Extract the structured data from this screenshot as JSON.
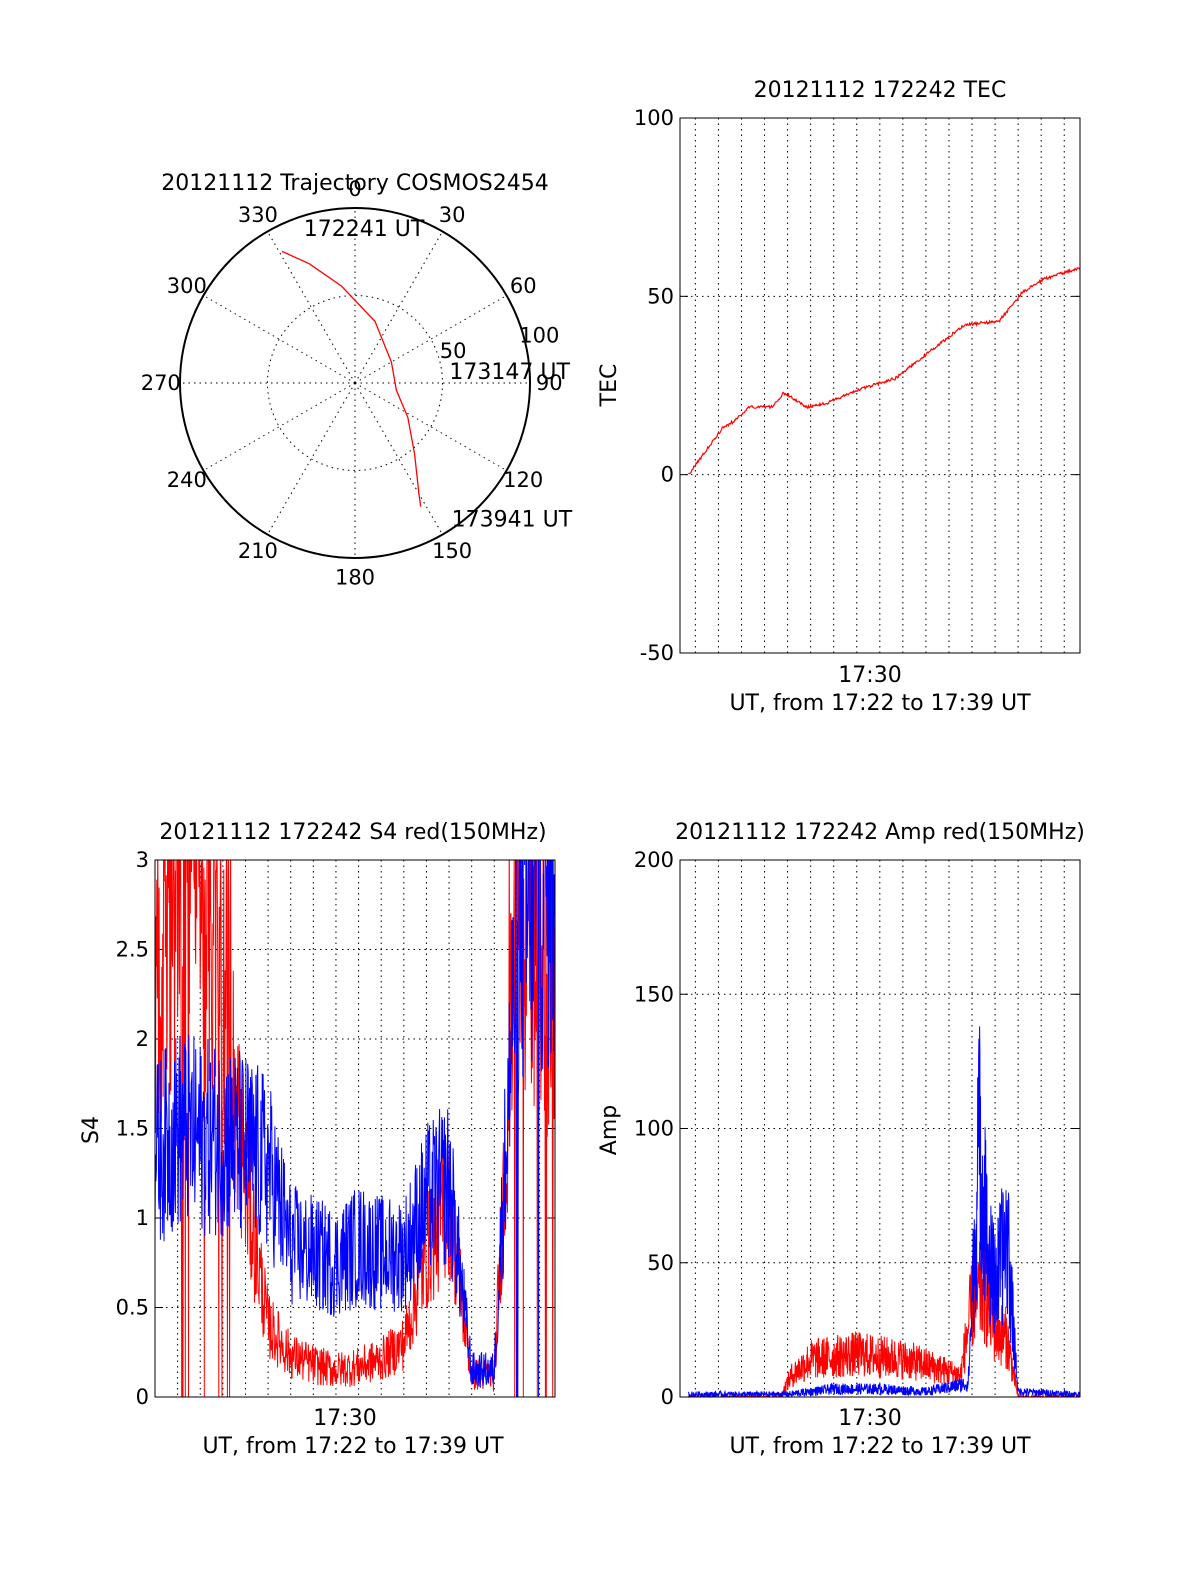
{
  "colors": {
    "red": "#ff0000",
    "blue": "#0000ff",
    "axis": "#000000"
  },
  "chart_data": [
    {
      "type": "polar",
      "title": "20121112 Trajectory COSMOS2454",
      "azimuth_labels": [
        "0",
        "30",
        "60",
        "90",
        "120",
        "150",
        "180",
        "210",
        "240",
        "270",
        "300",
        "330"
      ],
      "radial_ticks": [
        50,
        100
      ],
      "rmax": 100,
      "series": [
        {
          "color": "red",
          "points": [
            [
              331,
              86
            ],
            [
              339,
              73
            ],
            [
              352,
              56
            ],
            [
              18,
              37
            ],
            [
              60,
              24
            ],
            [
              100,
              24
            ],
            [
              123,
              36
            ],
            [
              140,
              53
            ],
            [
              150,
              73
            ],
            [
              152,
              80
            ]
          ]
        }
      ],
      "annotations": [
        {
          "text": "172241 UT",
          "az": 345,
          "r": 91
        },
        {
          "text": "173147 UT",
          "az": 84,
          "r": 60
        },
        {
          "text": "173941 UT",
          "az": 142,
          "r": 99
        }
      ]
    },
    {
      "type": "line",
      "title": "20121112 172242 TEC",
      "ylabel": "TEC",
      "xlabel": "UT, from 17:22 to 17:39 UT",
      "x_tick_labels": [
        "17:30"
      ],
      "y_ticks": [
        100,
        50,
        0,
        -50
      ],
      "ylim": [
        -50,
        100
      ],
      "series": [
        {
          "color": "red",
          "x": [
            "17:22:42",
            "17:24:10",
            "17:24:40",
            "17:25:20",
            "17:26:20",
            "17:26:50",
            "17:27:50",
            "17:28:40",
            "17:30:10",
            "17:31:40",
            "17:32:40",
            "17:33:40",
            "17:34:40",
            "17:36:10",
            "17:36:40",
            "17:37:10",
            "17:38:10",
            "17:39:41"
          ],
          "y": [
            0,
            13,
            15,
            19,
            19,
            23,
            19,
            20,
            24,
            27,
            32,
            37,
            42,
            43,
            47,
            51,
            55,
            58
          ]
        }
      ]
    },
    {
      "type": "line",
      "title": "20121112 172242 S4 red(150MHz)",
      "ylabel": "S4",
      "xlabel": "UT, from 17:22 to 17:39 UT",
      "x_tick_labels": [
        "17:30"
      ],
      "y_ticks": [
        "3",
        "2.5",
        "2",
        "1.5",
        "1",
        "0.5",
        "0"
      ],
      "ylim": [
        0,
        3
      ],
      "series": [
        {
          "color": "red",
          "x": [
            "17:22:00",
            "17:23:00",
            "17:24:00",
            "17:25:00",
            "17:26:00",
            "17:27:00",
            "17:28:00",
            "17:29:00",
            "17:30:00",
            "17:31:00",
            "17:32:00",
            "17:33:00",
            "17:34:00",
            "17:35:00",
            "17:36:00",
            "17:37:00",
            "17:38:00",
            "17:39:00"
          ],
          "y": [
            2.2,
            2.9,
            2.8,
            2.3,
            1.2,
            0.4,
            0.23,
            0.18,
            0.15,
            0.17,
            0.21,
            0.3,
            0.8,
            1.1,
            0.13,
            0.12,
            2.7,
            2.3
          ]
        },
        {
          "color": "blue",
          "x": [
            "17:22:00",
            "17:23:00",
            "17:24:00",
            "17:25:00",
            "17:26:00",
            "17:27:00",
            "17:28:00",
            "17:29:00",
            "17:30:00",
            "17:31:00",
            "17:32:00",
            "17:33:00",
            "17:34:00",
            "17:35:00",
            "17:36:00",
            "17:37:00",
            "17:38:00",
            "17:39:00"
          ],
          "y": [
            1.35,
            1.5,
            1.45,
            1.45,
            1.4,
            1.3,
            0.85,
            0.8,
            0.75,
            0.85,
            0.8,
            0.8,
            1.1,
            1.2,
            0.15,
            0.15,
            2.6,
            2.8
          ]
        }
      ]
    },
    {
      "type": "line",
      "title": "20121112 172242 Amp red(150MHz)",
      "ylabel": "Amp",
      "xlabel": "UT, from 17:22 to 17:39 UT",
      "x_tick_labels": [
        "17:30"
      ],
      "y_ticks": [
        200,
        150,
        100,
        50,
        0
      ],
      "ylim": [
        0,
        200
      ],
      "series": [
        {
          "color": "red",
          "x": [
            "17:22:42",
            "17:26:40",
            "17:27:10",
            "17:28:00",
            "17:29:00",
            "17:30:00",
            "17:31:00",
            "17:32:00",
            "17:33:00",
            "17:34:30",
            "17:35:00",
            "17:35:30",
            "17:36:00",
            "17:36:30",
            "17:37:00",
            "17:39:41"
          ],
          "y": [
            0,
            0,
            8,
            14,
            15,
            16,
            15,
            14,
            12,
            8,
            35,
            40,
            25,
            22,
            0,
            0
          ]
        },
        {
          "color": "blue",
          "x": [
            "17:22:42",
            "17:27:00",
            "17:29:00",
            "17:31:00",
            "17:33:00",
            "17:34:50",
            "17:35:20",
            "17:35:40",
            "17:36:00",
            "17:36:30",
            "17:37:00",
            "17:39:41"
          ],
          "y": [
            1,
            1,
            3,
            3,
            2,
            5,
            95,
            55,
            40,
            60,
            2,
            1
          ]
        }
      ]
    }
  ]
}
